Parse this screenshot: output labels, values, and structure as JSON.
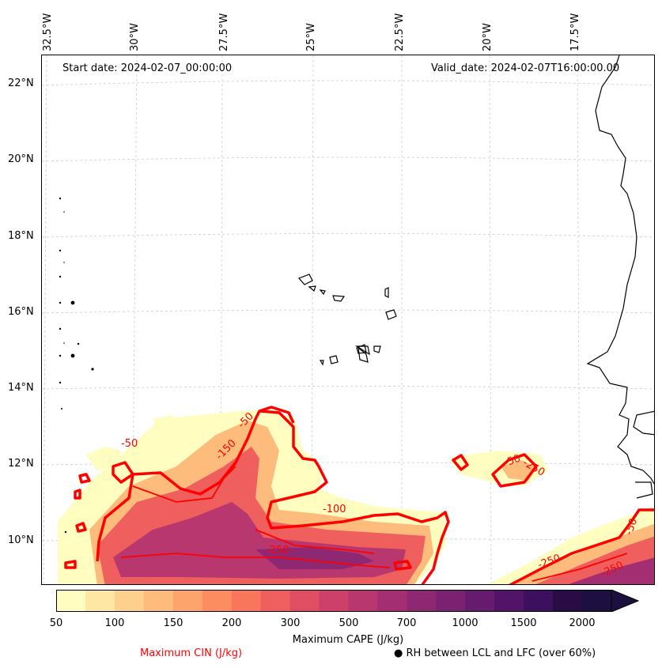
{
  "map": {
    "start_date": "Start date: 2024-02-07_00:00:00",
    "valid_date": "Valid_date: 2024-02-07T16:00:00.00",
    "longitude_labels": [
      "32.5°W",
      "30°W",
      "27.5°W",
      "25°W",
      "22.5°W",
      "20°W",
      "17.5°W"
    ],
    "latitude_labels": [
      "22°N",
      "20°N",
      "18°N",
      "16°N",
      "14°N",
      "12°N",
      "10°N"
    ],
    "cin_contour_labels": [
      "-50",
      "-50",
      "-150",
      "-100",
      "-250",
      "-50",
      "-250",
      "-250",
      "-250",
      "-50"
    ]
  },
  "colorbar": {
    "title": "Maximum CAPE (J/kg)",
    "tick_labels": [
      "50",
      "100",
      "150",
      "200",
      "300",
      "500",
      "700",
      "1000",
      "1500",
      "2000"
    ],
    "colors": [
      "#fffdbf",
      "#fee6a4",
      "#fed08e",
      "#fdbb7c",
      "#fda46c",
      "#fb8d60",
      "#f8765c",
      "#ee5f5e",
      "#e04e63",
      "#cc406a",
      "#b8376f",
      "#a32f72",
      "#8f2873",
      "#7a2172",
      "#661b6e",
      "#521468",
      "#3d0f5f",
      "#2a0c45",
      "#1c1040"
    ]
  },
  "legend": {
    "cin_label": "Maximum CIN (J/kg)",
    "rh_label": "● RH between LCL and LFC (over 60%)"
  },
  "colors": {
    "cin_contour": "#ff0000",
    "coastline": "#000000",
    "gridline": "#cccccc"
  }
}
